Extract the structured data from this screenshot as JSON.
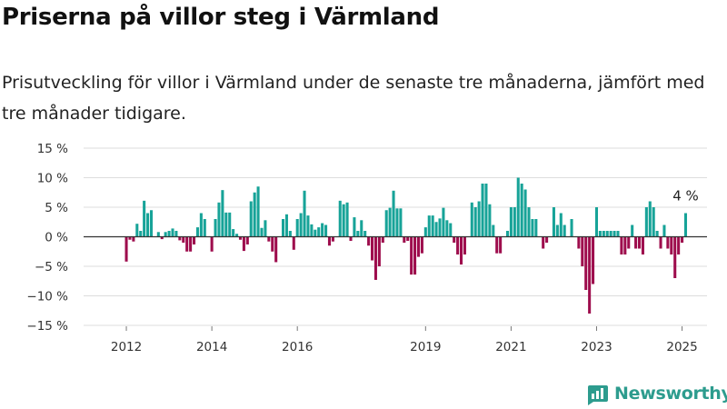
{
  "title": "Priserna på villor steg i Värmland",
  "subtitle": "Prisutveckling för villor i Värmland under de senaste tre månaderna, jämfört med tre månader tidigare.",
  "brand": "Newsworthy",
  "colors": {
    "positive": "#17a398",
    "negative": "#9e0d4d",
    "grid": "#dddddd",
    "zero_line": "#333333",
    "brand": "#2d9c8e"
  },
  "chart_data": {
    "type": "bar",
    "title": "",
    "xlabel": "",
    "ylabel": "",
    "ylim": [
      -15,
      15
    ],
    "y_ticks": [
      15,
      10,
      5,
      0,
      -5,
      -10,
      -15
    ],
    "y_tick_labels": [
      "15 %",
      "10 %",
      "5 %",
      "0 %",
      "−5 %",
      "−10 %",
      "−15 %"
    ],
    "x_range": [
      "2011-01",
      "2025-08"
    ],
    "x_ticks": [
      {
        "label": "2012",
        "date": "2012-01"
      },
      {
        "label": "2014",
        "date": "2014-01"
      },
      {
        "label": "2016",
        "date": "2016-01"
      },
      {
        "label": "2019",
        "date": "2019-01"
      },
      {
        "label": "2021",
        "date": "2021-01"
      },
      {
        "label": "2023",
        "date": "2023-01"
      },
      {
        "label": "2025",
        "date": "2025-01"
      }
    ],
    "grid": true,
    "unit": "%",
    "start": "2012-01",
    "series": [
      {
        "values": [
          -4.2,
          -0.5,
          -0.8,
          2.2,
          1,
          6.1,
          4,
          4.5,
          0,
          0.8,
          -0.4,
          0.8,
          1,
          1.4,
          1,
          -0.6,
          -1,
          -2.5,
          -2.5,
          -1.3,
          1.6,
          4,
          3,
          0,
          -2.5,
          3,
          5.8,
          7.9,
          4.1,
          4.1,
          1.3,
          0.5,
          -0.5,
          -2.4,
          -1.3,
          6,
          7.5,
          8.5,
          1.5,
          2.8,
          -0.8,
          -2.5,
          -4.3,
          0,
          3,
          3.8,
          1,
          -2.2,
          3,
          4,
          7.8,
          3.6,
          2.1,
          1.2,
          1.6,
          2.3,
          2,
          -1.5,
          -0.8,
          0,
          6.1,
          5.5,
          5.8,
          -0.7,
          3.3,
          1,
          2.8,
          1,
          -1.5,
          -4,
          -7.3,
          -5,
          -1,
          4.5,
          4.9,
          7.8,
          4.8,
          4.8,
          -1,
          -0.7,
          -6.4,
          -6.4,
          -3.4,
          -2.8,
          1.6,
          3.6,
          3.6,
          2.5,
          3.1,
          4.9,
          2.8,
          2.3,
          -1,
          -3,
          -4.7,
          -3,
          0,
          5.8,
          5,
          6,
          9,
          9,
          5.5,
          2,
          -2.8,
          -2.8,
          0,
          1,
          5,
          5,
          10,
          9,
          8,
          5,
          3,
          3,
          0,
          -2,
          -1,
          0,
          5,
          2,
          4,
          2,
          0,
          3,
          0,
          -2,
          -5,
          -9,
          -13,
          -8,
          5,
          1,
          1,
          1,
          1,
          1,
          1,
          -3,
          -3,
          -2,
          2,
          -2,
          -2,
          -3,
          5,
          6,
          5,
          1,
          -2,
          2,
          -2,
          -3,
          -7,
          -3,
          -1,
          4
        ]
      }
    ],
    "annotations": [
      {
        "text": "4 %",
        "date": "2025-02",
        "value": 4
      }
    ]
  }
}
